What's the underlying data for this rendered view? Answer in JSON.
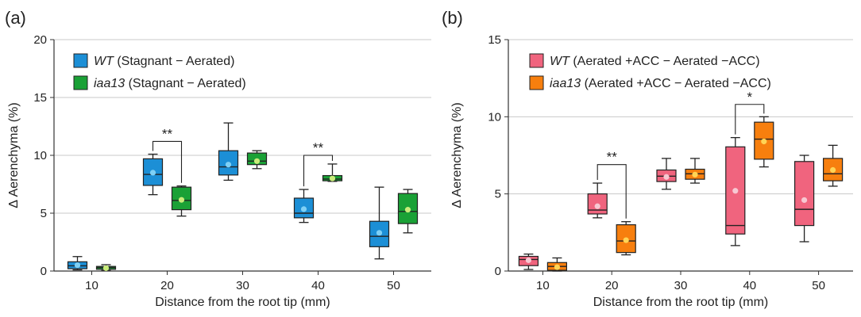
{
  "panels": [
    {
      "letter": "(a)"
    },
    {
      "letter": "(b)"
    }
  ],
  "chart_data": [
    {
      "type": "box",
      "xlabel": "Distance from the root tip (mm)",
      "ylabel": "Δ Aerenchyma (%)",
      "categories": [
        "10",
        "20",
        "30",
        "40",
        "50"
      ],
      "ylim": [
        0,
        20
      ],
      "yticks": [
        0,
        5,
        10,
        15,
        20
      ],
      "grid": "horizontal",
      "legend_position": "top-left",
      "series": [
        {
          "name_italic": "WT",
          "name_rest": " (Stagnant − Aerated)",
          "fill": "#1c8fd6",
          "mean_color": "#7fd0f5",
          "boxes": [
            {
              "category": "10",
              "min": 0.1,
              "q1": 0.2,
              "median": 0.45,
              "q3": 0.8,
              "max": 1.25,
              "mean": 0.5
            },
            {
              "category": "20",
              "min": 6.6,
              "q1": 7.4,
              "median": 8.35,
              "q3": 9.7,
              "max": 10.1,
              "mean": 8.5
            },
            {
              "category": "30",
              "min": 7.85,
              "q1": 8.3,
              "median": 9.0,
              "q3": 10.4,
              "max": 12.8,
              "mean": 9.2
            },
            {
              "category": "40",
              "min": 4.2,
              "q1": 4.6,
              "median": 5.0,
              "q3": 6.3,
              "max": 7.05,
              "mean": 5.35
            },
            {
              "category": "50",
              "min": 1.05,
              "q1": 2.1,
              "median": 3.0,
              "q3": 4.3,
              "max": 7.25,
              "mean": 3.3
            }
          ]
        },
        {
          "name_italic": "iaa13",
          "name_rest": " (Stagnant − Aerated)",
          "fill": "#1aa136",
          "mean_color": "#c9ec7a",
          "boxes": [
            {
              "category": "10",
              "min": 0.05,
              "q1": 0.15,
              "median": 0.3,
              "q3": 0.4,
              "max": 0.55,
              "mean": 0.25
            },
            {
              "category": "20",
              "min": 4.75,
              "q1": 5.3,
              "median": 6.1,
              "q3": 7.25,
              "max": 7.35,
              "mean": 6.15
            },
            {
              "category": "30",
              "min": 8.85,
              "q1": 9.2,
              "median": 9.5,
              "q3": 10.2,
              "max": 10.4,
              "mean": 9.5
            },
            {
              "category": "40",
              "min": 7.75,
              "q1": 7.8,
              "median": 7.95,
              "q3": 8.25,
              "max": 9.25,
              "mean": 8.0
            },
            {
              "category": "50",
              "min": 3.3,
              "q1": 4.1,
              "median": 5.15,
              "q3": 6.7,
              "max": 7.05,
              "mean": 5.3
            }
          ]
        }
      ],
      "significance": [
        {
          "category": "20",
          "label": "**",
          "level": 11.2
        },
        {
          "category": "40",
          "label": "**",
          "level": 10.0
        }
      ]
    },
    {
      "type": "box",
      "xlabel": "Distance from the root tip (mm)",
      "ylabel": "Δ Aerenchyma (%)",
      "categories": [
        "10",
        "20",
        "30",
        "40",
        "50"
      ],
      "ylim": [
        0,
        15
      ],
      "yticks": [
        0,
        5,
        10,
        15
      ],
      "grid": "horizontal",
      "legend_position": "top-left",
      "series": [
        {
          "name_italic": "WT",
          "name_rest": " (Aerated +ACC − Aerated −ACC)",
          "fill": "#f0647e",
          "mean_color": "#f7c8d2",
          "boxes": [
            {
              "category": "10",
              "min": 0.1,
              "q1": 0.35,
              "median": 0.75,
              "q3": 0.95,
              "max": 1.1,
              "mean": 0.7
            },
            {
              "category": "20",
              "min": 3.45,
              "q1": 3.7,
              "median": 3.95,
              "q3": 5.0,
              "max": 5.7,
              "mean": 4.2
            },
            {
              "category": "30",
              "min": 5.3,
              "q1": 5.8,
              "median": 6.15,
              "q3": 6.55,
              "max": 7.3,
              "mean": 6.1
            },
            {
              "category": "40",
              "min": 1.65,
              "q1": 2.4,
              "median": 2.95,
              "q3": 8.05,
              "max": 8.65,
              "mean": 5.2
            },
            {
              "category": "50",
              "min": 1.9,
              "q1": 2.95,
              "median": 4.0,
              "q3": 7.1,
              "max": 7.5,
              "mean": 4.6
            }
          ]
        },
        {
          "name_italic": "iaa13",
          "name_rest": " (Aerated +ACC − Aerated −ACC)",
          "fill": "#f77f0e",
          "mean_color": "#ffd455",
          "boxes": [
            {
              "category": "10",
              "min": 0.0,
              "q1": 0.05,
              "median": 0.3,
              "q3": 0.55,
              "max": 0.85,
              "mean": 0.25
            },
            {
              "category": "20",
              "min": 1.05,
              "q1": 1.2,
              "median": 1.95,
              "q3": 3.0,
              "max": 3.2,
              "mean": 2.0
            },
            {
              "category": "30",
              "min": 5.7,
              "q1": 5.95,
              "median": 6.3,
              "q3": 6.6,
              "max": 7.3,
              "mean": 6.25
            },
            {
              "category": "40",
              "min": 6.75,
              "q1": 7.25,
              "median": 8.55,
              "q3": 9.65,
              "max": 10.0,
              "mean": 8.4
            },
            {
              "category": "50",
              "min": 5.5,
              "q1": 5.85,
              "median": 6.3,
              "q3": 7.3,
              "max": 8.15,
              "mean": 6.55
            }
          ]
        }
      ],
      "significance": [
        {
          "category": "20",
          "label": "**",
          "level": 6.9
        },
        {
          "category": "40",
          "label": "*",
          "level": 10.8
        }
      ]
    }
  ]
}
